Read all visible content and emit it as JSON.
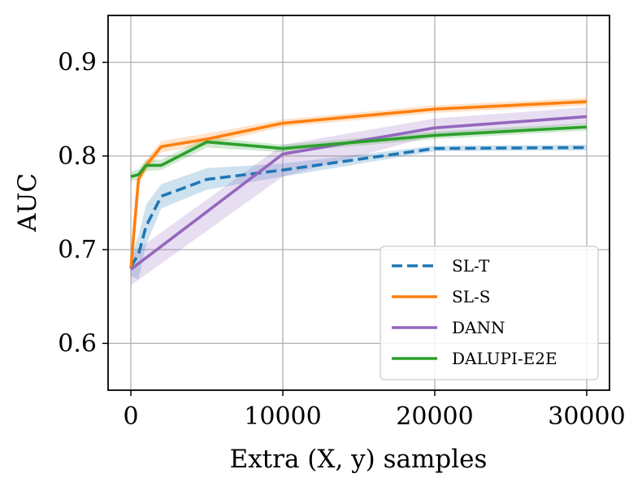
{
  "chart_data": {
    "type": "line",
    "title": "",
    "xlabel": "Extra (X, y) samples",
    "ylabel": "AUC",
    "xlim": [
      -1500,
      31500
    ],
    "ylim": [
      0.55,
      0.95
    ],
    "xticks": [
      0,
      10000,
      20000,
      30000
    ],
    "yticks": [
      0.6,
      0.7,
      0.8,
      0.9
    ],
    "xtick_labels": [
      "0",
      "10000",
      "20000",
      "30000"
    ],
    "ytick_labels": [
      "0.6",
      "0.7",
      "0.8",
      "0.9"
    ],
    "grid": true,
    "legend_position": "lower-right",
    "series": [
      {
        "name": "SL-T",
        "color": "#1f77b4",
        "dash": "dashed",
        "x": [
          0,
          500,
          1000,
          2000,
          5000,
          10000,
          20000,
          30000
        ],
        "y": [
          0.682,
          0.695,
          0.725,
          0.757,
          0.775,
          0.785,
          0.808,
          0.809
        ],
        "lower": [
          0.672,
          0.668,
          0.705,
          0.744,
          0.764,
          0.778,
          0.805,
          0.806
        ],
        "upper": [
          0.692,
          0.715,
          0.748,
          0.77,
          0.787,
          0.792,
          0.811,
          0.812
        ]
      },
      {
        "name": "SL-S",
        "color": "#ff7f0e",
        "dash": "solid",
        "x": [
          0,
          500,
          1000,
          2000,
          5000,
          10000,
          20000,
          30000
        ],
        "y": [
          0.68,
          0.775,
          0.79,
          0.81,
          0.818,
          0.835,
          0.85,
          0.858
        ],
        "lower": [
          0.675,
          0.768,
          0.784,
          0.804,
          0.812,
          0.831,
          0.846,
          0.854
        ],
        "upper": [
          0.685,
          0.782,
          0.796,
          0.816,
          0.824,
          0.839,
          0.854,
          0.862
        ]
      },
      {
        "name": "DANN",
        "color": "#9467bd",
        "dash": "solid",
        "x": [
          0,
          10000,
          20000,
          30000
        ],
        "y": [
          0.679,
          0.802,
          0.83,
          0.842
        ],
        "lower": [
          0.662,
          0.778,
          0.822,
          0.834
        ],
        "upper": [
          0.695,
          0.812,
          0.84,
          0.852
        ]
      },
      {
        "name": "DALUPI-E2E",
        "color": "#2ca02c",
        "dash": "solid",
        "x": [
          0,
          500,
          1000,
          2000,
          5000,
          10000,
          20000,
          30000
        ],
        "y": [
          0.778,
          0.78,
          0.79,
          0.79,
          0.815,
          0.808,
          0.822,
          0.831
        ],
        "lower": [
          0.773,
          0.775,
          0.784,
          0.785,
          0.809,
          0.804,
          0.818,
          0.827
        ],
        "upper": [
          0.783,
          0.786,
          0.796,
          0.796,
          0.82,
          0.812,
          0.826,
          0.835
        ]
      }
    ]
  }
}
